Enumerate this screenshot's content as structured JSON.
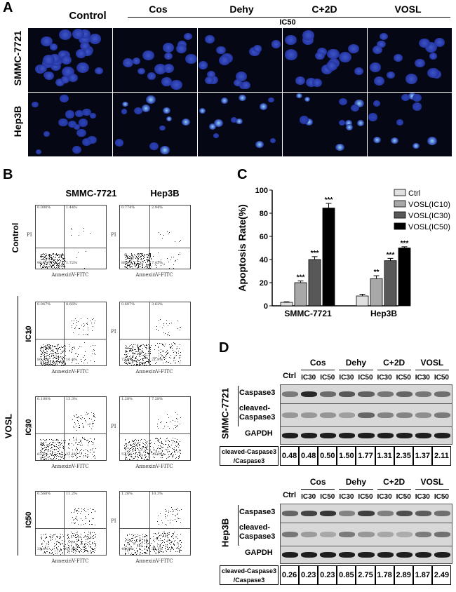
{
  "panelA": {
    "letter": "A",
    "columns": [
      "Control",
      "Cos",
      "Dehy",
      "C+2D",
      "VOSL"
    ],
    "ic_label": "IC50",
    "rows": [
      "SMMC-7721",
      "Hep3B"
    ]
  },
  "panelB": {
    "letter": "B",
    "col_headers": [
      "SMMC-7721",
      "Hep3B"
    ],
    "row_label_control": "Control",
    "group_label": "VOSL",
    "row_labels": [
      "IC10",
      "IC30",
      "IC50"
    ],
    "x_axis": "AnnexinV-FITC",
    "y_axis": "PI",
    "plots": [
      {
        "q1": "0.000%",
        "q2": "1.44%",
        "q3": "1.72%",
        "q4": "96.8%"
      },
      {
        "q1": "0.774%",
        "q2": "2.94%",
        "q3": "7.43%",
        "q4": "88.9%"
      },
      {
        "q1": "0.047%",
        "q2": "8.66%",
        "q3": "10.4%",
        "q4": "80.9%"
      },
      {
        "q1": "0.607%",
        "q2": "3.62%",
        "q3": "21.9%",
        "q4": "73.8%"
      },
      {
        "q1": "0.100%",
        "q2": "13.3%",
        "q3": "23.1%",
        "q4": "63.5%"
      },
      {
        "q1": "1.28%",
        "q2": "7.28%",
        "q3": "33.9%",
        "q4": "57.5%"
      },
      {
        "q1": "0.568%",
        "q2": "11.2%",
        "q3": "54.9%",
        "q4": "33.4%"
      },
      {
        "q1": "1.26%",
        "q2": "10.3%",
        "q3": "39.1%",
        "q4": "49.3%"
      }
    ]
  },
  "panelC": {
    "letter": "C",
    "chart_data": {
      "type": "bar",
      "categories": [
        "SMMC-7721",
        "Hep3B"
      ],
      "ylabel": "Apoptosis Rate(%)",
      "ylim": [
        0,
        100
      ],
      "yticks": [
        0,
        20,
        40,
        60,
        80,
        100
      ],
      "legend": "top-right",
      "series": [
        {
          "name": "Ctrl",
          "color": "#e0e0e0",
          "values": [
            3,
            8.5
          ],
          "errors": [
            0.5,
            1.5
          ],
          "sig": [
            "",
            ""
          ]
        },
        {
          "name": "VOSL(IC10)",
          "color": "#a8a8a8",
          "values": [
            20,
            23.5
          ],
          "errors": [
            1.5,
            2.5
          ],
          "sig": [
            "***",
            "**"
          ]
        },
        {
          "name": "VOSL(IC30)",
          "color": "#585858",
          "values": [
            40,
            39
          ],
          "errors": [
            2.5,
            2
          ],
          "sig": [
            "***",
            "***"
          ]
        },
        {
          "name": "VOSL(IC50)",
          "color": "#000000",
          "values": [
            84.5,
            50
          ],
          "errors": [
            4,
            1
          ],
          "sig": [
            "***",
            "***"
          ]
        }
      ]
    }
  },
  "panelD": {
    "letter": "D",
    "blocks": [
      {
        "cell_line": "SMMC-7721",
        "ctrl": "Ctrl",
        "groups": [
          "Cos",
          "Dehy",
          "C+2D",
          "VOSL"
        ],
        "doses": [
          "IC30",
          "IC50",
          "IC30",
          "IC50",
          "IC30",
          "IC50",
          "IC30",
          "IC50"
        ],
        "bands": [
          "Caspase3",
          "cleaved-Caspase3",
          "GAPDH"
        ],
        "ratio_label": "cleaved-Caspase3 /Caspase3",
        "ratios": [
          "0.48",
          "0.48",
          "0.50",
          "1.50",
          "1.77",
          "1.31",
          "2.35",
          "1.37",
          "2.11"
        ]
      },
      {
        "cell_line": "Hep3B",
        "ctrl": "Ctrl",
        "groups": [
          "Cos",
          "Dehy",
          "C+2D",
          "VOSL"
        ],
        "doses": [
          "IC30",
          "IC50",
          "IC30",
          "IC50",
          "IC30",
          "IC50",
          "IC30",
          "IC50"
        ],
        "bands": [
          "Caspase3",
          "cleaved-Caspase3",
          "GAPDH"
        ],
        "ratio_label": "cleaved-Caspase3 /Caspase3",
        "ratios": [
          "0.26",
          "0.23",
          "0.23",
          "0.85",
          "2.75",
          "1.78",
          "2.89",
          "1.87",
          "2.49"
        ]
      }
    ]
  }
}
